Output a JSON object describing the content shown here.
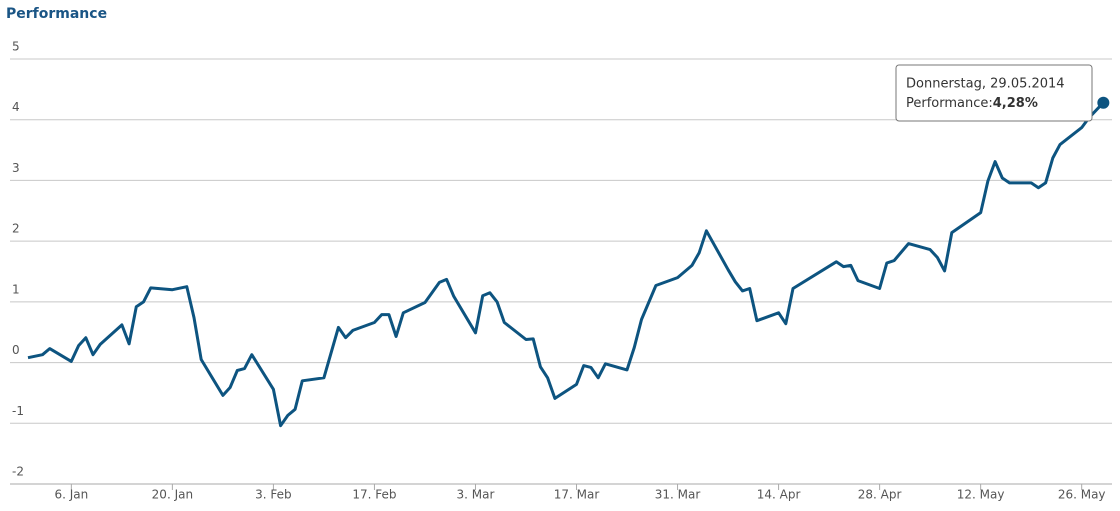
{
  "chart_data": {
    "type": "line",
    "title": "Performance",
    "x": [
      0,
      2,
      3,
      6,
      7,
      8,
      9,
      10,
      13,
      14,
      15,
      16,
      17,
      20,
      22,
      23,
      24,
      27,
      28,
      29,
      30,
      31,
      34,
      35,
      36,
      37,
      38,
      41,
      43,
      44,
      45,
      48,
      49,
      50,
      51,
      52,
      55,
      57,
      58,
      59,
      62,
      63,
      64,
      65,
      66,
      69,
      70,
      71,
      72,
      73,
      76,
      77,
      78,
      79,
      80,
      83,
      84,
      85,
      87,
      90,
      91,
      92,
      93,
      94,
      97,
      98,
      99,
      100,
      101,
      104,
      105,
      106,
      112,
      113,
      114,
      115,
      118,
      119,
      120,
      122,
      125,
      126,
      127,
      128,
      132,
      133,
      134,
      135,
      136,
      139,
      140,
      141,
      142,
      143,
      146,
      147,
      149
    ],
    "series": [
      {
        "name": "Performance:",
        "color": "#0d5480",
        "values": [
          0.08,
          0.13,
          0.23,
          0.02,
          0.28,
          0.41,
          0.13,
          0.3,
          0.62,
          0.31,
          0.92,
          1.0,
          1.23,
          1.2,
          1.25,
          0.74,
          0.05,
          -0.54,
          -0.41,
          -0.13,
          -0.1,
          0.13,
          -0.44,
          -1.04,
          -0.87,
          -0.77,
          -0.3,
          -0.25,
          0.58,
          0.41,
          0.53,
          0.66,
          0.79,
          0.79,
          0.43,
          0.82,
          0.99,
          1.32,
          1.37,
          1.09,
          0.49,
          1.1,
          1.15,
          1.0,
          0.66,
          0.38,
          0.39,
          -0.07,
          -0.25,
          -0.59,
          -0.36,
          -0.05,
          -0.08,
          -0.25,
          -0.02,
          -0.12,
          0.25,
          0.71,
          1.27,
          1.4,
          1.5,
          1.6,
          1.81,
          2.17,
          1.53,
          1.33,
          1.18,
          1.22,
          0.69,
          0.82,
          0.64,
          1.22,
          1.66,
          1.58,
          1.6,
          1.35,
          1.22,
          1.64,
          1.68,
          1.96,
          1.86,
          1.73,
          1.51,
          2.14,
          2.47,
          2.99,
          3.31,
          3.04,
          2.96,
          2.96,
          2.88,
          2.96,
          3.37,
          3.59,
          3.87,
          4.03,
          4.28
        ]
      }
    ],
    "xlim": [
      -2.5,
      150.2
    ],
    "xticks": [
      {
        "value": 6,
        "label": "6. Jan"
      },
      {
        "value": 20,
        "label": "20. Jan"
      },
      {
        "value": 34,
        "label": "3. Feb"
      },
      {
        "value": 48,
        "label": "17. Feb"
      },
      {
        "value": 62,
        "label": "3. Mar"
      },
      {
        "value": 76,
        "label": "17. Mar"
      },
      {
        "value": 90,
        "label": "31. Mar"
      },
      {
        "value": 104,
        "label": "14. Apr"
      },
      {
        "value": 118,
        "label": "28. Apr"
      },
      {
        "value": 132,
        "label": "12. May"
      },
      {
        "value": 146,
        "label": "26. May"
      }
    ],
    "ylim": [
      -2,
      5
    ],
    "yticks": [
      -2,
      -1,
      0,
      1,
      2,
      3,
      4,
      5
    ],
    "grid": true,
    "tooltip": {
      "date": "Donnerstag, 29.05.2014",
      "value_label": "4,28%"
    }
  }
}
